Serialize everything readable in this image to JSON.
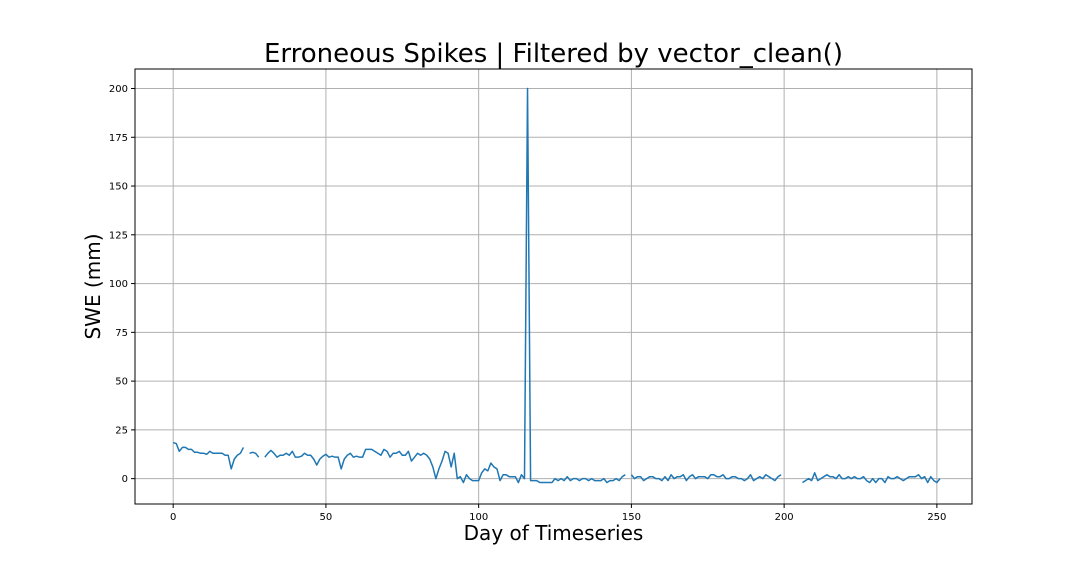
{
  "chart_data": {
    "type": "line",
    "title": "Erroneous Spikes | Filtered by vector_clean()",
    "xlabel": "Day of Timeseries",
    "ylabel": "SWE (mm)",
    "xlim": [
      -12.5,
      261.5
    ],
    "ylim": [
      -13,
      210
    ],
    "grid": true,
    "x_ticks": [
      0,
      50,
      100,
      150,
      200,
      250
    ],
    "y_ticks": [
      0,
      25,
      50,
      75,
      100,
      125,
      150,
      175,
      200
    ],
    "x_tick_labels": [
      "0",
      "50",
      "100",
      "150",
      "200",
      "250"
    ],
    "y_tick_labels": [
      "0",
      "25",
      "50",
      "75",
      "100",
      "125",
      "150",
      "175",
      "200"
    ],
    "line_color": "#1f77b4",
    "series": [
      {
        "values": [
          18.5,
          18,
          14,
          16,
          16,
          15,
          15,
          13.5,
          13.5,
          13,
          13,
          12.5,
          14,
          13,
          13,
          13,
          13,
          12,
          12,
          5,
          10,
          12,
          13,
          16,
          null,
          13,
          13.5,
          13,
          11,
          null,
          11,
          13,
          14.5,
          13,
          11,
          12,
          12,
          13,
          12,
          14,
          11,
          11,
          11.5,
          13,
          12,
          12,
          10,
          7,
          10,
          11.5,
          12.5,
          11,
          11.5,
          11,
          11,
          5,
          10,
          12,
          13,
          11,
          11.5,
          11,
          11,
          15,
          15,
          15,
          14,
          13,
          12,
          15,
          14,
          11,
          13,
          13,
          14,
          12,
          12,
          14,
          9,
          11,
          13,
          12,
          13,
          12,
          10,
          6,
          0,
          5,
          9,
          14,
          13,
          6,
          13,
          0,
          1,
          -2,
          2,
          0,
          -1,
          -1,
          -1,
          3,
          5,
          4,
          8,
          6,
          5,
          -1,
          2,
          2,
          1,
          1,
          1,
          -2,
          2,
          0,
          200,
          -1,
          -1,
          -1,
          -2,
          -2,
          -2,
          -2,
          -2,
          0,
          -1,
          0,
          -1,
          1,
          -1,
          0,
          0,
          -1,
          0,
          0,
          -1,
          0,
          -1,
          -1,
          -1,
          0,
          -2,
          -1,
          -1,
          0,
          -1,
          1,
          2,
          null,
          2,
          0,
          1,
          1,
          -1,
          0,
          1,
          1,
          0,
          0,
          -1,
          1,
          -1,
          2,
          0,
          1,
          1,
          2,
          -1,
          1,
          2,
          0,
          1,
          1,
          1,
          0,
          2,
          2,
          1,
          1,
          2,
          0,
          0,
          1,
          1,
          0,
          0,
          -1,
          0,
          2,
          -1,
          0,
          1,
          0,
          2,
          1,
          0,
          -1,
          1,
          2,
          null,
          null,
          null,
          null,
          null,
          null,
          -2,
          -1,
          0,
          -1,
          3,
          -1,
          0,
          1,
          2,
          1,
          1,
          0,
          2,
          0,
          0,
          1,
          0,
          1,
          0,
          0,
          1,
          -1,
          -2,
          0,
          -2,
          0,
          0,
          -2,
          1,
          0,
          0,
          1,
          0,
          -1,
          0,
          1,
          1,
          1,
          2,
          0,
          1,
          -2,
          1,
          -1,
          -2,
          0
        ]
      }
    ]
  }
}
